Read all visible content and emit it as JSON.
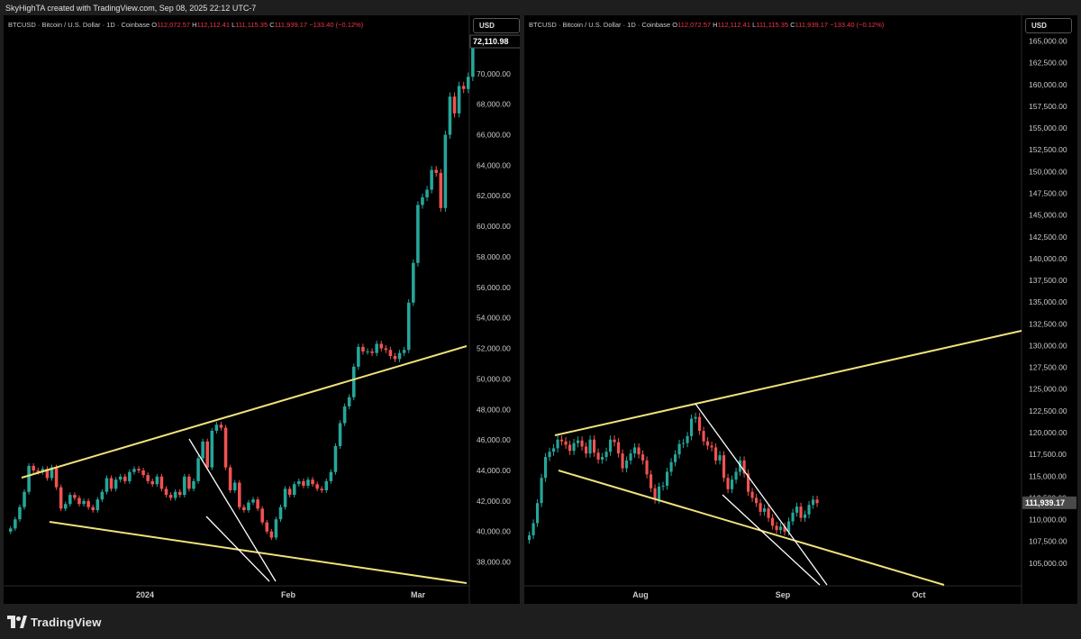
{
  "caption": "SkyHighTA created with TradingView.com, Sep 08, 2025 22:12 UTC-7",
  "footer_brand": "TradingView",
  "colors": {
    "up": "#26a69a",
    "down": "#ef5350",
    "trend": "#f0e27a",
    "flag": "#ffffff",
    "background": "#000000"
  },
  "chart_data": [
    {
      "type": "candlestick",
      "panel": "left",
      "symbol_line": {
        "symbol": "BTCUSD · Bitcoin / U.S. Dollar · 1D · Coinbase",
        "o_label": "O",
        "o": "112,072.57",
        "h_label": "H",
        "h": "112,112.41",
        "l_label": "L",
        "l": "111,115.35",
        "c_label": "C",
        "c": "111,939.17",
        "chg": "−133.40 (−0.12%)"
      },
      "currency": "USD",
      "current_price_label": "72,110.98",
      "ylim": [
        36500,
        73000
      ],
      "y_ticks": [
        "38,000.00",
        "40,000.00",
        "42,000.00",
        "44,000.00",
        "46,000.00",
        "48,000.00",
        "50,000.00",
        "52,000.00",
        "54,000.00",
        "56,000.00",
        "58,000.00",
        "60,000.00",
        "62,000.00",
        "64,000.00",
        "66,000.00",
        "68,000.00",
        "70,000.00"
      ],
      "x_labels": [
        "2024",
        "Feb",
        "Mar"
      ],
      "close_series": [
        40200,
        40800,
        41600,
        42600,
        44300,
        44000,
        43900,
        44100,
        43500,
        44200,
        42900,
        41500,
        41800,
        42400,
        42200,
        41800,
        42000,
        41600,
        41400,
        42100,
        42600,
        43500,
        42800,
        43400,
        43600,
        43300,
        43900,
        44100,
        44000,
        43700,
        43300,
        43100,
        43600,
        42800,
        42400,
        42200,
        42600,
        42400,
        43600,
        42800,
        43300,
        44800,
        45900,
        44200,
        46600,
        47000,
        46800,
        44200,
        42700,
        43200,
        41600,
        41400,
        41900,
        42100,
        41500,
        40600,
        40000,
        39600,
        40800,
        41600,
        42800,
        42400,
        43100,
        43300,
        43000,
        43400,
        43100,
        42800,
        42700,
        43300,
        43900,
        45600,
        47100,
        48200,
        48800,
        50800,
        52100,
        51800,
        51800,
        51700,
        52300,
        52000,
        51900,
        51500,
        51300,
        51700,
        51900,
        55000,
        57600,
        61400,
        61900,
        62400,
        63700,
        63500,
        61200,
        66000,
        68500,
        67400,
        69200,
        69000,
        69800,
        72100
      ]
    },
    {
      "type": "candlestick",
      "panel": "right",
      "symbol_line": {
        "symbol": "BTCUSD · Bitcoin / U.S. Dollar · 1D · Coinbase",
        "o_label": "O",
        "o": "112,072.57",
        "h_label": "H",
        "h": "112,112.41",
        "l_label": "L",
        "l": "111,115.35",
        "c_label": "C",
        "c": "111,939.17",
        "chg": "−133.40 (−0.12%)"
      },
      "currency": "USD",
      "current_price_label": "111,939.17",
      "ylim": [
        102500,
        166500
      ],
      "y_ticks": [
        "105,000.00",
        "107,500.00",
        "110,000.00",
        "112,500.00",
        "115,000.00",
        "117,500.00",
        "120,000.00",
        "122,500.00",
        "125,000.00",
        "127,500.00",
        "130,000.00",
        "132,500.00",
        "135,000.00",
        "137,500.00",
        "140,000.00",
        "142,500.00",
        "145,000.00",
        "147,500.00",
        "150,000.00",
        "152,500.00",
        "155,000.00",
        "157,500.00",
        "160,000.00",
        "162,500.00",
        "165,000.00"
      ],
      "x_labels": [
        "Aug",
        "Sep",
        "Oct"
      ],
      "close_series": [
        108200,
        109600,
        111900,
        114800,
        117200,
        117800,
        118200,
        119200,
        119000,
        118600,
        117900,
        118800,
        119100,
        118400,
        117600,
        119200,
        117700,
        116900,
        117200,
        117800,
        119200,
        118900,
        117600,
        115900,
        116800,
        117600,
        118300,
        117500,
        116800,
        115200,
        113600,
        112300,
        113800,
        113900,
        115500,
        116600,
        117500,
        118700,
        118800,
        119600,
        121600,
        121800,
        120200,
        119000,
        118500,
        118300,
        116800,
        117400,
        114800,
        113500,
        114600,
        115500,
        116800,
        115300,
        113200,
        112500,
        111900,
        110900,
        111300,
        110200,
        109300,
        108800,
        109200,
        108600,
        109800,
        110800,
        111500,
        110200,
        110600,
        111700,
        112300,
        111900
      ]
    }
  ]
}
